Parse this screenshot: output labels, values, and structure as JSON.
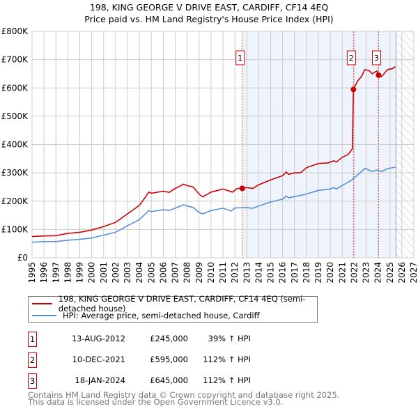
{
  "chart_data": {
    "type": "line",
    "title": "198, KING GEORGE V DRIVE EAST, CARDIFF, CF14 4EQ",
    "subtitle": "Price paid vs. HM Land Registry's House Price Index (HPI)",
    "xlim": [
      1995,
      2027
    ],
    "ylim": [
      0,
      800000
    ],
    "y_ticks": [
      {
        "v": 0,
        "label": "£0"
      },
      {
        "v": 100000,
        "label": "£100K"
      },
      {
        "v": 200000,
        "label": "£200K"
      },
      {
        "v": 300000,
        "label": "£300K"
      },
      {
        "v": 400000,
        "label": "£400K"
      },
      {
        "v": 500000,
        "label": "£500K"
      },
      {
        "v": 600000,
        "label": "£600K"
      },
      {
        "v": 700000,
        "label": "£700K"
      },
      {
        "v": 800000,
        "label": "£800K"
      }
    ],
    "x_ticks": [
      "1995",
      "1996",
      "1997",
      "1998",
      "1999",
      "2000",
      "2001",
      "2002",
      "2003",
      "2004",
      "2005",
      "2006",
      "2007",
      "2008",
      "2009",
      "2010",
      "2011",
      "2012",
      "2013",
      "2014",
      "2015",
      "2016",
      "2017",
      "2018",
      "2019",
      "2020",
      "2021",
      "2022",
      "2023",
      "2024",
      "2025",
      "2026",
      "2027"
    ],
    "grid": true,
    "shaded_range": [
      2012.62,
      2025.5
    ],
    "forecast_hatch_from": 2025.5,
    "series": [
      {
        "name": "198, KING GEORGE V DRIVE EAST, CARDIFF, CF14 4EQ (semi-detached house)",
        "color": "#cc0000",
        "points": [
          [
            1995,
            75000
          ],
          [
            1996,
            77000
          ],
          [
            1997,
            78000
          ],
          [
            1998,
            86000
          ],
          [
            1999,
            90000
          ],
          [
            2000,
            98000
          ],
          [
            2001,
            110000
          ],
          [
            2002,
            125000
          ],
          [
            2003,
            155000
          ],
          [
            2004,
            185000
          ],
          [
            2004.8,
            232000
          ],
          [
            2005,
            228000
          ],
          [
            2006,
            235000
          ],
          [
            2006.5,
            231000
          ],
          [
            2007,
            245000
          ],
          [
            2007.7,
            260000
          ],
          [
            2008,
            255000
          ],
          [
            2008.5,
            250000
          ],
          [
            2009,
            225000
          ],
          [
            2009.3,
            215000
          ],
          [
            2010,
            232000
          ],
          [
            2011,
            243000
          ],
          [
            2011.8,
            232000
          ],
          [
            2012.2,
            245000
          ],
          [
            2012.62,
            245000
          ],
          [
            2013,
            248000
          ],
          [
            2013.5,
            245000
          ],
          [
            2014,
            258000
          ],
          [
            2015,
            275000
          ],
          [
            2016,
            290000
          ],
          [
            2016.3,
            303000
          ],
          [
            2016.5,
            295000
          ],
          [
            2017,
            300000
          ],
          [
            2017.5,
            300000
          ],
          [
            2018,
            318000
          ],
          [
            2019,
            333000
          ],
          [
            2019.8,
            335000
          ],
          [
            2020.3,
            343000
          ],
          [
            2020.5,
            338000
          ],
          [
            2021,
            355000
          ],
          [
            2021.5,
            365000
          ],
          [
            2021.85,
            385000
          ],
          [
            2021.94,
            595000
          ],
          [
            2022.3,
            625000
          ],
          [
            2022.6,
            640000
          ],
          [
            2022.9,
            665000
          ],
          [
            2023.3,
            660000
          ],
          [
            2023.5,
            650000
          ],
          [
            2023.9,
            660000
          ],
          [
            2024.05,
            645000
          ],
          [
            2024.3,
            640000
          ],
          [
            2024.8,
            665000
          ],
          [
            2025.2,
            668000
          ],
          [
            2025.45,
            675000
          ]
        ]
      },
      {
        "name": "HPI: Average price, semi-detached house, Cardiff",
        "color": "#5b8fd4",
        "points": [
          [
            1995,
            55000
          ],
          [
            1996,
            57000
          ],
          [
            1997,
            57000
          ],
          [
            1998,
            62000
          ],
          [
            1999,
            65000
          ],
          [
            2000,
            70000
          ],
          [
            2001,
            80000
          ],
          [
            2002,
            90000
          ],
          [
            2003,
            113000
          ],
          [
            2004,
            135000
          ],
          [
            2004.8,
            167000
          ],
          [
            2005,
            163000
          ],
          [
            2006,
            170000
          ],
          [
            2006.5,
            167000
          ],
          [
            2007,
            175000
          ],
          [
            2007.7,
            187000
          ],
          [
            2008,
            183000
          ],
          [
            2008.5,
            178000
          ],
          [
            2009,
            160000
          ],
          [
            2009.3,
            155000
          ],
          [
            2010,
            167000
          ],
          [
            2011,
            175000
          ],
          [
            2011.7,
            165000
          ],
          [
            2012,
            176000
          ],
          [
            2013,
            177000
          ],
          [
            2013.5,
            175000
          ],
          [
            2014,
            183000
          ],
          [
            2015,
            197000
          ],
          [
            2016,
            207000
          ],
          [
            2016.3,
            218000
          ],
          [
            2016.5,
            212000
          ],
          [
            2017,
            216000
          ],
          [
            2018,
            225000
          ],
          [
            2019,
            238000
          ],
          [
            2020,
            243000
          ],
          [
            2020.3,
            248000
          ],
          [
            2020.5,
            243000
          ],
          [
            2021,
            255000
          ],
          [
            2021.8,
            275000
          ],
          [
            2022.5,
            300000
          ],
          [
            2022.9,
            316000
          ],
          [
            2023.5,
            305000
          ],
          [
            2023.9,
            310000
          ],
          [
            2024.3,
            305000
          ],
          [
            2024.8,
            315000
          ],
          [
            2025.45,
            320000
          ]
        ]
      }
    ],
    "sales": [
      {
        "label": "1",
        "x": 2012.62,
        "value": 245000,
        "date": "13-AUG-2012",
        "price": "£245,000",
        "hpi": "39% ↑ HPI"
      },
      {
        "label": "2",
        "x": 2021.94,
        "value": 595000,
        "date": "10-DEC-2021",
        "price": "£595,000",
        "hpi": "112% ↑ HPI"
      },
      {
        "label": "3",
        "x": 2024.05,
        "value": 645000,
        "date": "18-JAN-2024",
        "price": "£645,000",
        "hpi": "112% ↑ HPI"
      }
    ]
  },
  "footer": {
    "line1": "Contains HM Land Registry data © Crown copyright and database right 2025.",
    "line2": "This data is licensed under the Open Government Licence v3.0."
  }
}
